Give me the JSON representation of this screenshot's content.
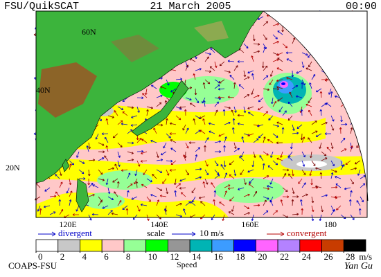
{
  "header": {
    "left": "FSU/QuikSCAT",
    "center": "21 March 2005",
    "right": "00:00"
  },
  "map": {
    "lat_labels": [
      "60N",
      "40N",
      "20N"
    ],
    "lon_labels": [
      "120E",
      "140E",
      "160E",
      "180"
    ]
  },
  "legend": {
    "divergent": "divergent",
    "scale": "scale",
    "scale_value": "10 m/s",
    "convergent": "convergent"
  },
  "colorbar": {
    "ticks": [
      0,
      2,
      4,
      6,
      8,
      10,
      12,
      14,
      16,
      18,
      20,
      22,
      24,
      26,
      28
    ],
    "unit": "m/s",
    "label": "Speed",
    "colors": [
      "#ffffff",
      "#c8c8c8",
      "#ffff00",
      "#ffc8c8",
      "#96ff96",
      "#00ff00",
      "#969696",
      "#00b4b4",
      "#3c9cff",
      "#0000ff",
      "#ff64ff",
      "#b482ff",
      "#ff0000",
      "#c83c00",
      "#000000"
    ]
  },
  "footer": {
    "left": "COAPS-FSU",
    "right": "Yan Gu"
  }
}
